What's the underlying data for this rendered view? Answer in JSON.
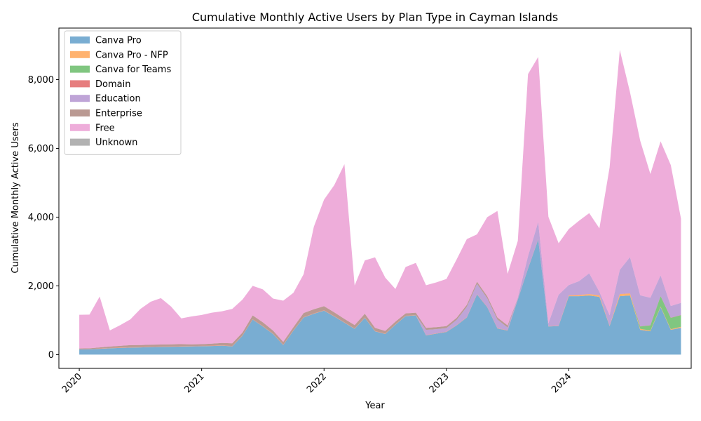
{
  "chart_data": {
    "type": "area",
    "stacked": true,
    "title": "Cumulative Monthly Active Users by Plan Type in Cayman Islands",
    "xlabel": "Year",
    "ylabel": "Cumulative Monthly Active Users",
    "xlim": [
      "2019-11",
      "2025-01"
    ],
    "ylim": [
      -400,
      9500
    ],
    "yticks": [
      0,
      2000,
      4000,
      6000,
      8000
    ],
    "ytick_labels": [
      "0",
      "2,000",
      "4,000",
      "6,000",
      "8,000"
    ],
    "xticks": [
      "2020-01",
      "2021-01",
      "2022-01",
      "2023-01",
      "2024-01"
    ],
    "xtick_labels": [
      "2020",
      "2021",
      "2022",
      "2023",
      "2024"
    ],
    "legend_position": "top-left",
    "grid": false,
    "x": [
      "2020-01",
      "2020-02",
      "2020-03",
      "2020-04",
      "2020-05",
      "2020-06",
      "2020-07",
      "2020-08",
      "2020-09",
      "2020-10",
      "2020-11",
      "2020-12",
      "2021-01",
      "2021-02",
      "2021-03",
      "2021-04",
      "2021-05",
      "2021-06",
      "2021-07",
      "2021-08",
      "2021-09",
      "2021-10",
      "2021-11",
      "2021-12",
      "2022-01",
      "2022-02",
      "2022-03",
      "2022-04",
      "2022-05",
      "2022-06",
      "2022-07",
      "2022-08",
      "2022-09",
      "2022-10",
      "2022-11",
      "2022-12",
      "2023-01",
      "2023-02",
      "2023-03",
      "2023-04",
      "2023-05",
      "2023-06",
      "2023-07",
      "2023-08",
      "2023-09",
      "2023-10",
      "2023-11",
      "2023-12",
      "2024-01",
      "2024-02",
      "2024-03",
      "2024-04",
      "2024-05",
      "2024-06",
      "2024-07",
      "2024-08",
      "2024-09",
      "2024-10",
      "2024-11",
      "2024-12"
    ],
    "series": [
      {
        "name": "Canva Pro",
        "color": "#1f77b4",
        "values": [
          150,
          155,
          170,
          185,
          195,
          205,
          210,
          220,
          225,
          230,
          235,
          240,
          245,
          250,
          260,
          240,
          550,
          1020,
          820,
          600,
          280,
          700,
          1080,
          1190,
          1280,
          1110,
          930,
          750,
          1070,
          680,
          600,
          870,
          1120,
          1140,
          560,
          610,
          660,
          850,
          1080,
          1750,
          1380,
          760,
          700,
          1600,
          2500,
          3350,
          820,
          830,
          1700,
          1700,
          1720,
          1680,
          830,
          1700,
          1720,
          720,
          680,
          1380,
          720,
          780
        ]
      },
      {
        "name": "Canva Pro - NFP",
        "color": "#ff7f0e",
        "values": [
          5,
          5,
          5,
          5,
          5,
          5,
          5,
          5,
          5,
          5,
          5,
          5,
          5,
          5,
          5,
          5,
          5,
          5,
          5,
          5,
          5,
          5,
          5,
          5,
          5,
          5,
          5,
          5,
          5,
          5,
          5,
          5,
          5,
          5,
          5,
          5,
          5,
          5,
          5,
          5,
          5,
          5,
          5,
          5,
          5,
          5,
          5,
          5,
          20,
          30,
          40,
          40,
          10,
          60,
          60,
          30,
          20,
          20,
          20,
          30
        ]
      },
      {
        "name": "Canva for Teams",
        "color": "#2ca02c",
        "values": [
          0,
          0,
          0,
          0,
          0,
          0,
          0,
          0,
          0,
          0,
          0,
          0,
          0,
          0,
          0,
          0,
          0,
          0,
          0,
          0,
          0,
          0,
          0,
          0,
          0,
          0,
          0,
          0,
          0,
          0,
          0,
          0,
          0,
          0,
          0,
          0,
          0,
          0,
          0,
          0,
          0,
          0,
          0,
          0,
          0,
          0,
          0,
          0,
          0,
          0,
          0,
          0,
          0,
          0,
          0,
          70,
          150,
          300,
          330,
          340
        ]
      },
      {
        "name": "Domain",
        "color": "#d62728",
        "values": [
          5,
          5,
          5,
          5,
          5,
          5,
          5,
          5,
          5,
          5,
          5,
          5,
          5,
          5,
          5,
          5,
          5,
          5,
          5,
          5,
          5,
          5,
          5,
          5,
          5,
          5,
          5,
          5,
          5,
          5,
          5,
          5,
          5,
          5,
          5,
          5,
          5,
          5,
          5,
          5,
          5,
          5,
          5,
          5,
          5,
          5,
          5,
          5,
          5,
          5,
          5,
          5,
          5,
          5,
          5,
          5,
          5,
          5,
          5,
          5
        ]
      },
      {
        "name": "Education",
        "color": "#9467bd",
        "values": [
          0,
          0,
          0,
          0,
          0,
          0,
          0,
          0,
          0,
          0,
          0,
          0,
          0,
          0,
          0,
          0,
          0,
          0,
          0,
          0,
          0,
          0,
          0,
          0,
          0,
          0,
          0,
          0,
          0,
          0,
          0,
          0,
          0,
          0,
          150,
          120,
          100,
          150,
          300,
          300,
          250,
          250,
          80,
          50,
          350,
          500,
          80,
          900,
          300,
          400,
          600,
          100,
          300,
          700,
          1050,
          900,
          800,
          600,
          340,
          350
        ]
      },
      {
        "name": "Enterprise",
        "color": "#8c564b",
        "values": [
          20,
          20,
          30,
          40,
          50,
          60,
          60,
          60,
          60,
          60,
          60,
          50,
          50,
          60,
          70,
          80,
          80,
          110,
          110,
          90,
          80,
          90,
          120,
          120,
          120,
          110,
          100,
          100,
          110,
          90,
          80,
          80,
          70,
          70,
          60,
          60,
          60,
          60,
          60,
          60,
          60,
          60,
          60,
          0,
          0,
          0,
          0,
          0,
          0,
          0,
          0,
          0,
          0,
          0,
          0,
          0,
          0,
          0,
          0,
          0
        ]
      },
      {
        "name": "Free",
        "color": "#e377c2",
        "values": [
          980,
          980,
          1480,
          470,
          600,
          750,
          1050,
          1250,
          1350,
          1100,
          750,
          810,
          850,
          900,
          920,
          1000,
          960,
          860,
          960,
          930,
          1200,
          1000,
          1130,
          2400,
          3100,
          3700,
          4500,
          1150,
          1550,
          2050,
          1550,
          950,
          1350,
          1450,
          1240,
          1300,
          1370,
          1700,
          1910,
          1380,
          2300,
          3100,
          1500,
          1650,
          5300,
          4800,
          3100,
          1500,
          1630,
          1760,
          1750,
          1850,
          4300,
          6400,
          4800,
          4500,
          3600,
          3900,
          4100,
          2450
        ]
      },
      {
        "name": "Unknown",
        "color": "#7f7f7f",
        "values": [
          0,
          0,
          0,
          0,
          0,
          0,
          0,
          0,
          0,
          0,
          0,
          0,
          0,
          0,
          0,
          0,
          0,
          0,
          0,
          0,
          0,
          0,
          0,
          0,
          0,
          0,
          0,
          0,
          0,
          0,
          0,
          0,
          0,
          0,
          0,
          0,
          0,
          0,
          0,
          0,
          0,
          0,
          0,
          0,
          0,
          0,
          0,
          0,
          0,
          0,
          0,
          0,
          0,
          0,
          0,
          0,
          0,
          0,
          0,
          0
        ]
      }
    ]
  }
}
